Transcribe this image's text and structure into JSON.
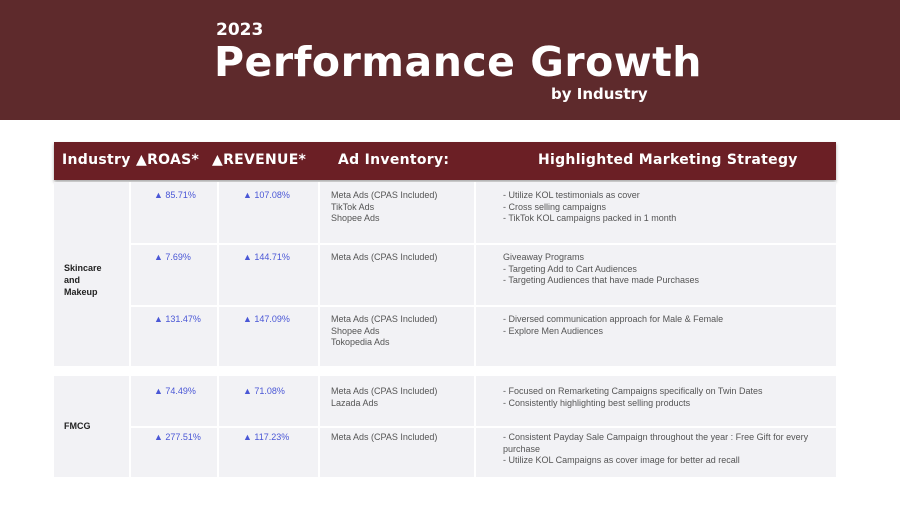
{
  "banner": {
    "year": "2023",
    "title": "Performance Growth",
    "subtitle": "by Industry"
  },
  "table": {
    "headers": {
      "industry": "Industry",
      "roas": "▲ROAS*",
      "revenue": "▲REVENUE*",
      "inventory": "Ad Inventory:",
      "strategy": "Highlighted Marketing Strategy"
    },
    "groups": [
      {
        "industry": "Skincare\nand\nMakeup",
        "rows": [
          {
            "roas": "▲ 85.71%",
            "revenue": "▲ 107.08%",
            "inventory": "Meta Ads (CPAS Included)\nTikTok Ads\nShopee Ads",
            "strategy": "- Utilize KOL testimonials as cover\n- Cross selling campaigns\n- TikTok KOL campaigns packed in 1 month"
          },
          {
            "roas": "▲ 7.69%",
            "revenue": "▲ 144.71%",
            "inventory": "Meta Ads (CPAS Included)",
            "strategy": "Giveaway Programs\n- Targeting Add to Cart Audiences\n- Targeting Audiences that have made Purchases"
          },
          {
            "roas": "▲ 131.47%",
            "revenue": "▲ 147.09%",
            "inventory": "Meta Ads (CPAS Included)\nShopee Ads\nTokopedia Ads",
            "strategy": "- Diversed communication approach for Male & Female\n- Explore Men Audiences"
          }
        ]
      },
      {
        "industry": "FMCG",
        "rows": [
          {
            "roas": "▲ 74.49%",
            "revenue": "▲ 71.08%",
            "inventory": "Meta Ads (CPAS Included)\nLazada Ads",
            "strategy": "- Focused on Remarketing Campaigns specifically on Twin Dates\n- Consistently highlighting best selling products"
          },
          {
            "roas": "▲ 277.51%",
            "revenue": "▲ 117.23%",
            "inventory": "Meta Ads (CPAS Included)",
            "strategy": "- Consistent Payday Sale Campaign throughout the year : Free Gift for every purchase\n- Utilize KOL Campaigns as cover image for better ad recall"
          }
        ]
      }
    ]
  }
}
